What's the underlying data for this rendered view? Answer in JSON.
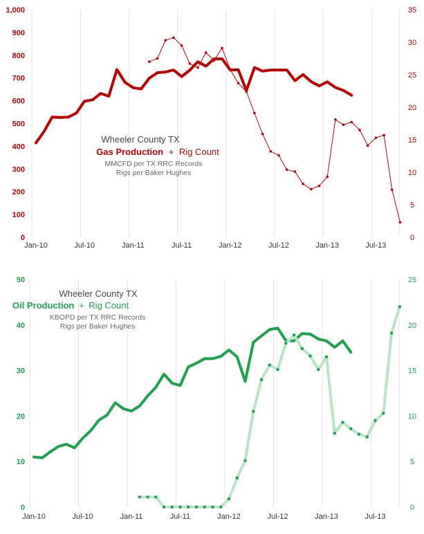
{
  "chart_data": [
    {
      "type": "line",
      "annotation": {
        "title": "Wheeler County TX",
        "series_label_primary": "Gas Production",
        "joiner": "+",
        "series_label_secondary": "Rig Count",
        "source_line_1": "MMCFD per TX RRC Records",
        "source_line_2": "Rigs per Baker Hughes"
      },
      "x_ticks": [
        "Jan-10",
        "Jul-10",
        "Jan-11",
        "Jul-11",
        "Jan-12",
        "Jul-12",
        "Jan-13",
        "Jul-13"
      ],
      "y_left": {
        "range": [
          0,
          1000
        ],
        "ticks": [
          "0",
          "100",
          "200",
          "300",
          "400",
          "500",
          "600",
          "700",
          "800",
          "900",
          "1,000"
        ]
      },
      "y_right": {
        "range": [
          0,
          35
        ],
        "ticks": [
          "0",
          "5",
          "10",
          "15",
          "20",
          "25",
          "30",
          "35"
        ]
      },
      "colors": {
        "primary": "#c00000",
        "secondary": "#c00000",
        "axis_left": "#c00000",
        "axis_right": "#c00000",
        "x_axis": "#333333"
      },
      "series": [
        {
          "name": "Gas Production",
          "axis": "left",
          "style": "thick",
          "start": "2010-01",
          "values": [
            415,
            465,
            528,
            526,
            528,
            546,
            598,
            604,
            632,
            620,
            737,
            681,
            657,
            652,
            699,
            723,
            726,
            735,
            706,
            734,
            771,
            752,
            784,
            784,
            735,
            736,
            645,
            746,
            730,
            735,
            735,
            735,
            688,
            715,
            684,
            665,
            683,
            658,
            645,
            624
          ]
        },
        {
          "name": "Rig Count",
          "axis": "right",
          "style": "dotted-thin",
          "start": "2011-03",
          "values": [
            27,
            27.5,
            30.3,
            30.7,
            29.5,
            26.7,
            26.1,
            28.4,
            27.2,
            29.1,
            25.8,
            23.7,
            22.4,
            19.1,
            15.9,
            13.2,
            12.6,
            10.4,
            10.1,
            8.2,
            7.4,
            7.9,
            9.3,
            18.1,
            17.3,
            17.7,
            16.5,
            14.1,
            15.3,
            15.7,
            7.3,
            2.3
          ]
        }
      ]
    },
    {
      "type": "line",
      "annotation": {
        "title": "Wheeler County TX",
        "series_label_primary": "Oil Production",
        "joiner": "+",
        "series_label_secondary": "Rig Count",
        "source_line_1": "KBOPD per TX RRC Records",
        "source_line_2": "Rigs per Baker Hughes"
      },
      "x_ticks": [
        "Jan-10",
        "Jul-10",
        "Jan-11",
        "Jul-11",
        "Jan-12",
        "Jul-12",
        "Jan-13",
        "Jul-13"
      ],
      "y_left": {
        "range": [
          0,
          50
        ],
        "ticks": [
          "0",
          "10",
          "20",
          "30",
          "40",
          "50"
        ]
      },
      "y_right": {
        "range": [
          0,
          25
        ],
        "ticks": [
          "0",
          "5",
          "10",
          "15",
          "20",
          "25"
        ]
      },
      "colors": {
        "primary": "#1aa34a",
        "secondary": "#b8e6c4",
        "secondary_marker": "#1aa34a",
        "axis_left": "#1aa34a",
        "axis_right": "#1aa34a",
        "x_axis": "#333333"
      },
      "series": [
        {
          "name": "Oil Production",
          "axis": "left",
          "style": "thick",
          "start": "2010-01",
          "values": [
            11.0,
            10.8,
            12.1,
            13.3,
            13.8,
            13.0,
            15.1,
            16.8,
            19.1,
            20.2,
            22.9,
            21.6,
            21.1,
            22.2,
            24.4,
            26.3,
            29.2,
            27.2,
            26.7,
            30.8,
            31.6,
            32.6,
            32.6,
            33.1,
            34.5,
            33.0,
            27.6,
            36.2,
            37.6,
            39.0,
            39.3,
            36.6,
            36.5,
            38.1,
            38.0,
            36.9,
            36.5,
            35.1,
            36.5,
            34.0
          ]
        },
        {
          "name": "Rig Count",
          "axis": "right",
          "style": "light-dotted",
          "start": "2011-02",
          "values": [
            1.1,
            1.1,
            1.1,
            0,
            0,
            0,
            0,
            0,
            0,
            0,
            0,
            0.9,
            3.2,
            5.1,
            10.5,
            14,
            15.6,
            15.1,
            18,
            18.9,
            17.4,
            16.6,
            15.1,
            16.5,
            8.1,
            9.3,
            8.6,
            8,
            7.7,
            9.5,
            10.3,
            19.1,
            22
          ]
        }
      ]
    }
  ]
}
